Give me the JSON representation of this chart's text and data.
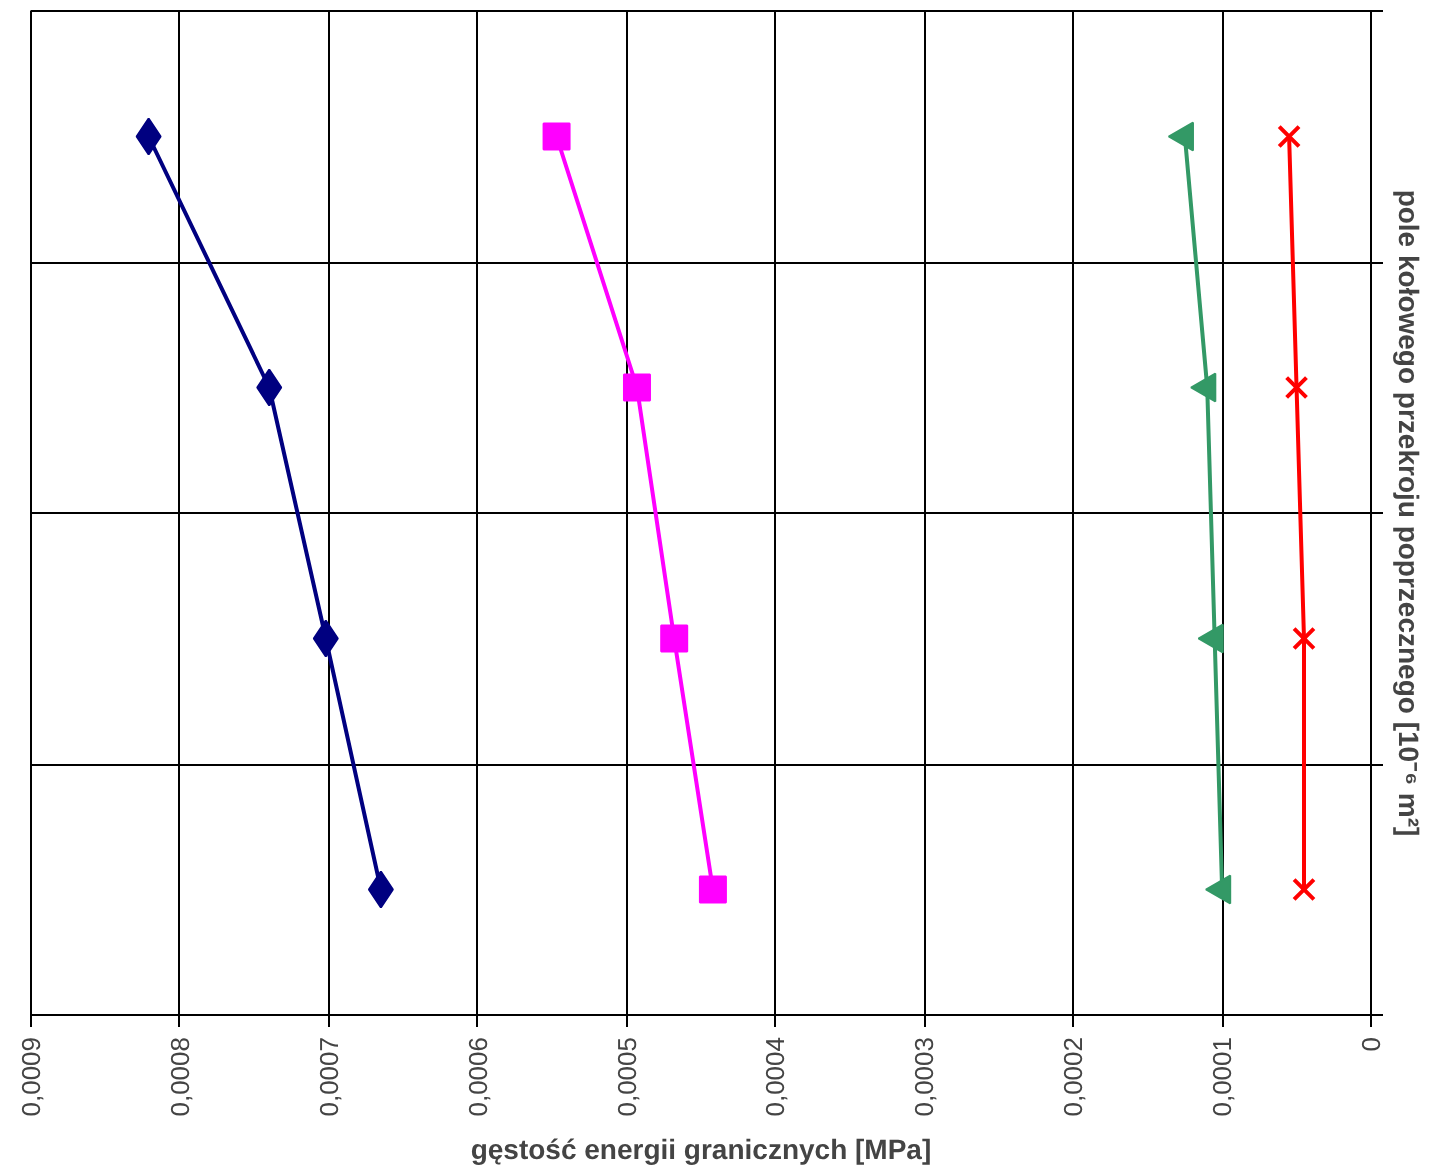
{
  "chart_data": {
    "type": "line",
    "orientation": "horizontal",
    "xlabel": "gęstość energii granicznych [MPa]",
    "ylabel": "pole kołowego przekroju poprzecznego [10⁻⁶ m²]",
    "categories": [
      null,
      null,
      null,
      null
    ],
    "series": [
      {
        "color": "#000080",
        "marker": "diamond",
        "values": [
          0.000821,
          0.00074,
          0.000702,
          0.000665
        ]
      },
      {
        "color": "#ff00ff",
        "marker": "square",
        "values": [
          0.000547,
          0.000493,
          0.000468,
          0.000442
        ]
      },
      {
        "color": "#339966",
        "marker": "triangle",
        "values": [
          0.000125,
          0.00011,
          0.000105,
          0.0001
        ]
      },
      {
        "color": "#ff0000",
        "marker": "cross",
        "values": [
          5.5e-05,
          5e-05,
          4.5e-05,
          4.5e-05
        ]
      }
    ],
    "xlim": [
      0.0009,
      0
    ],
    "xticks": [
      {
        "value": 0.0009,
        "label": "0,0009"
      },
      {
        "value": 0.0008,
        "label": "0,0008"
      },
      {
        "value": 0.0007,
        "label": "0,0007"
      },
      {
        "value": 0.0006,
        "label": "0,0006"
      },
      {
        "value": 0.0005,
        "label": "0,0005"
      },
      {
        "value": 0.0004,
        "label": "0,0004"
      },
      {
        "value": 0.0003,
        "label": "0,0003"
      },
      {
        "value": 0.0002,
        "label": "0,0002"
      },
      {
        "value": 0.0001,
        "label": "0,0001"
      },
      {
        "value": 0,
        "label": "0"
      }
    ],
    "grid": true,
    "line_style": "solid"
  }
}
